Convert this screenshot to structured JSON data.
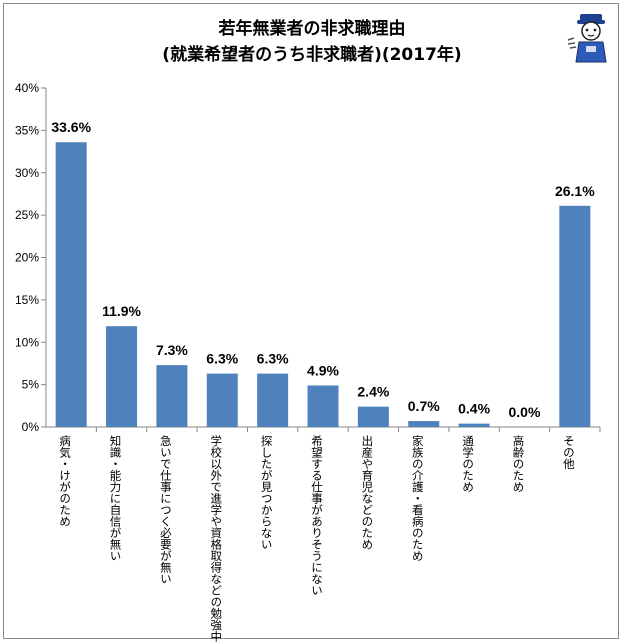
{
  "chart_data": {
    "type": "bar",
    "title": "若年無業者の非求職理由",
    "subtitle": "(就業希望者のうち非求職者)(2017年)",
    "xlabel": "",
    "ylabel": "",
    "categories": [
      "病気・けがのため",
      "知識・能力に自信が無い",
      "急いで仕事につく必要が無い",
      "学校以外で進学や資格取得などの勉強中",
      "探したが見つからない",
      "希望する仕事がありそうにない",
      "出産や育児などのため",
      "家族の介護・看病のため",
      "通学のため",
      "高齢のため",
      "その他"
    ],
    "values": [
      33.6,
      11.9,
      7.3,
      6.3,
      6.3,
      4.9,
      2.4,
      0.7,
      0.4,
      0.0,
      26.1
    ],
    "data_labels": [
      "33.6%",
      "11.9%",
      "7.3%",
      "6.3%",
      "6.3%",
      "4.9%",
      "2.4%",
      "0.7%",
      "0.4%",
      "0.0%",
      "26.1%"
    ],
    "yticks": [
      "0%",
      "5%",
      "10%",
      "15%",
      "20%",
      "25%",
      "30%",
      "35%",
      "40%"
    ],
    "ylim": [
      0,
      40
    ],
    "grid": false,
    "bar_color": "#4f81bd"
  }
}
